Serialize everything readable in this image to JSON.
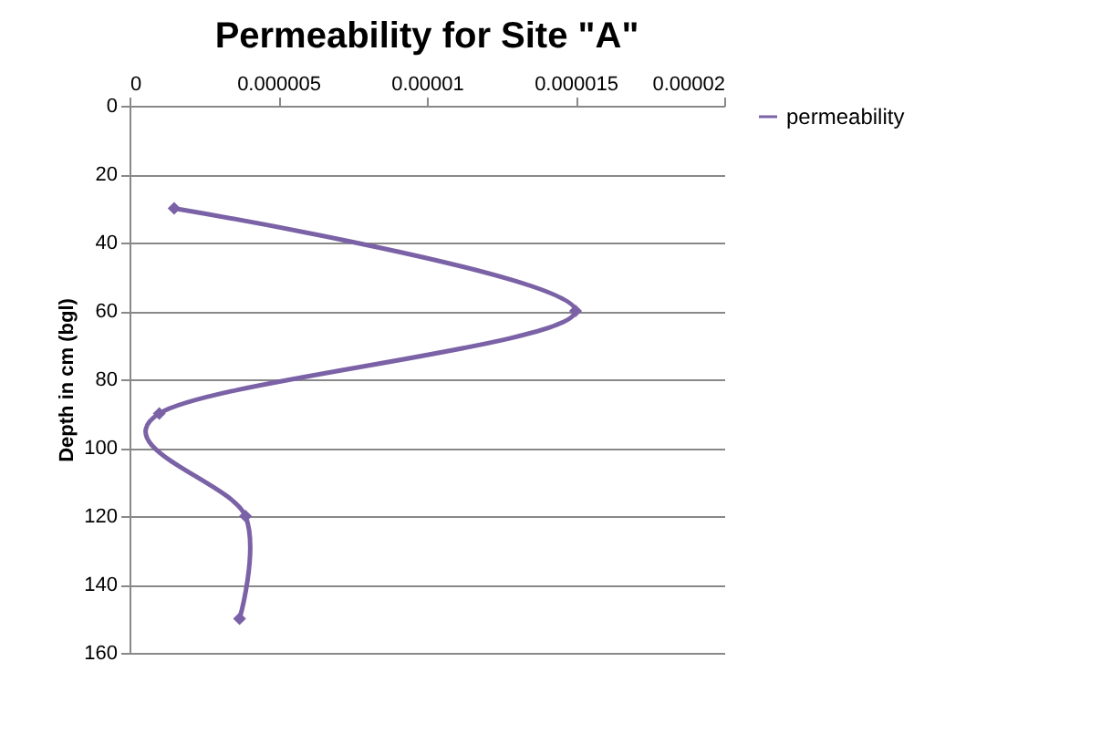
{
  "chart_data": {
    "type": "line",
    "title": "Permeability for Site \"A\"",
    "ylabel": "Depth in cm (bgl)",
    "x": [
      1.5e-06,
      1.5e-05,
      1e-06,
      3.9e-06,
      3.7e-06
    ],
    "series": [
      {
        "name": "permeability",
        "color": "#7b62a6",
        "values": [
          30,
          60,
          90,
          120,
          150
        ]
      }
    ],
    "xlim": [
      0,
      2e-05
    ],
    "xticks": [
      0,
      {
        "value": 5e-06,
        "label": "0.000005"
      },
      {
        "value": 1e-05,
        "label": "0.00001"
      },
      {
        "value": 1.5e-05,
        "label": "0.000015"
      },
      {
        "value": 2e-05,
        "label": "0.00002"
      }
    ],
    "ylim": [
      160,
      0
    ],
    "yticks": [
      0,
      20,
      40,
      60,
      80,
      100,
      120,
      140,
      160
    ],
    "grid": "y",
    "legend": "right",
    "marker": "diamond",
    "line_style": "solid"
  }
}
